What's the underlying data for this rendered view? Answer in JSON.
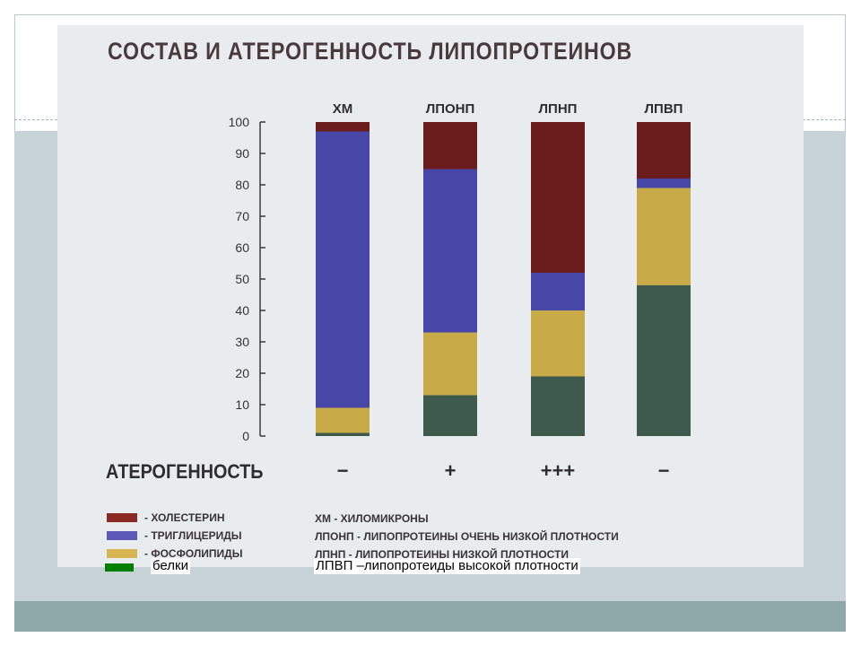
{
  "slide": {
    "title": "СОСТАВ И АТЕРОГЕННОСТЬ ЛИПОПРОТЕИНОВ"
  },
  "chart_data": {
    "type": "bar",
    "stacked": true,
    "categories": [
      "ХМ",
      "ЛПОНП",
      "ЛПНП",
      "ЛПВП"
    ],
    "ylim": [
      0,
      100
    ],
    "yticks": [
      0,
      10,
      20,
      30,
      40,
      50,
      60,
      70,
      80,
      90,
      100
    ],
    "grid": false,
    "series": [
      {
        "name": "белки",
        "color": "#3d5a4c",
        "values": [
          1,
          13,
          19,
          48
        ]
      },
      {
        "name": "фосфолипиды",
        "color": "#c9aa48",
        "values": [
          8,
          20,
          21,
          31
        ]
      },
      {
        "name": "триглицериды",
        "color": "#4747a8",
        "values": [
          88,
          52,
          12,
          3
        ]
      },
      {
        "name": "холестерин",
        "color": "#6b1c1c",
        "values": [
          3,
          15,
          48,
          18
        ]
      }
    ]
  },
  "atherogenicity": {
    "label": "АТЕРОГЕННОСТЬ",
    "values": [
      "−",
      "+",
      "+++",
      "−"
    ]
  },
  "legend": [
    {
      "color": "#8a2a22",
      "text": "- ХОЛЕСТЕРИН"
    },
    {
      "color": "#5b58b8",
      "text": "- ТРИГЛИЦЕРИДЫ"
    },
    {
      "color": "#d6b650",
      "text": "- ФОСФОЛИПИДЫ"
    }
  ],
  "abbreviations": [
    "ХМ - ХИЛОМИКРОНЫ",
    "ЛПОНП - ЛИПОПРОТЕИНЫ ОЧЕНЬ НИЗКОЙ ПЛОТНОСТИ",
    "ЛПНП - ЛИПОПРОТЕИНЫ НИЗКОЙ ПЛОТНОСТИ"
  ],
  "overlay": {
    "protein_swatch_color": "#008000",
    "protein_label": "белки",
    "hdl_label": "ЛПВП –липопротеиды высокой плотности"
  }
}
